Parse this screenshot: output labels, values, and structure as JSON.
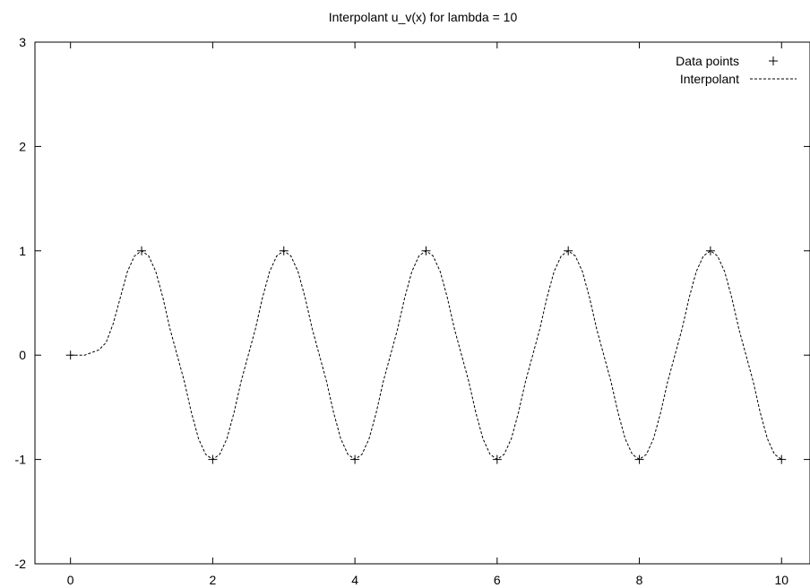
{
  "chart_data": {
    "type": "line",
    "title": "Interpolant u_v(x) for lambda = 10",
    "xlabel": "",
    "ylabel": "",
    "xlim": [
      -0.5,
      10.4
    ],
    "ylim": [
      -2,
      3
    ],
    "x_ticks": [
      "0",
      "2",
      "4",
      "6",
      "8",
      "10"
    ],
    "y_ticks": [
      "-2",
      "-1",
      "0",
      "1",
      "2",
      "3"
    ],
    "grid": false,
    "legend_position": "top-right",
    "series": [
      {
        "name": "Data points",
        "style": "points",
        "marker": "+",
        "x": [
          0,
          1,
          2,
          3,
          4,
          5,
          6,
          7,
          8,
          9,
          10
        ],
        "y": [
          0,
          1,
          -1,
          1,
          -1,
          1,
          -1,
          1,
          -1,
          1,
          -1
        ]
      },
      {
        "name": "Interpolant",
        "style": "dashed-line",
        "x": [
          0,
          0.2,
          0.4,
          0.5,
          0.6,
          0.7,
          0.8,
          0.9,
          1.0,
          1.1,
          1.2,
          1.3,
          1.4,
          1.5,
          1.6,
          1.7,
          1.8,
          1.9,
          2.0,
          2.1,
          2.2,
          2.3,
          2.4,
          2.5,
          2.6,
          2.7,
          2.8,
          2.9,
          3.0,
          3.1,
          3.2,
          3.3,
          3.4,
          3.5,
          3.6,
          3.7,
          3.8,
          3.9,
          4.0,
          4.1,
          4.2,
          4.3,
          4.4,
          4.5,
          4.6,
          4.7,
          4.8,
          4.9,
          5.0,
          5.1,
          5.2,
          5.3,
          5.4,
          5.5,
          5.6,
          5.7,
          5.8,
          5.9,
          6.0,
          6.1,
          6.2,
          6.3,
          6.4,
          6.5,
          6.6,
          6.7,
          6.8,
          6.9,
          7.0,
          7.1,
          7.2,
          7.3,
          7.4,
          7.5,
          7.6,
          7.7,
          7.8,
          7.9,
          8.0,
          8.1,
          8.2,
          8.3,
          8.4,
          8.5,
          8.6,
          8.7,
          8.8,
          8.9,
          9.0,
          9.1,
          9.2,
          9.3,
          9.4,
          9.5,
          9.6,
          9.7,
          9.8,
          9.9,
          10.0
        ],
        "y": [
          0,
          0.0,
          0.05,
          0.12,
          0.3,
          0.55,
          0.8,
          0.95,
          1.0,
          0.95,
          0.8,
          0.55,
          0.25,
          0.0,
          -0.25,
          -0.55,
          -0.8,
          -0.95,
          -1.0,
          -0.95,
          -0.8,
          -0.55,
          -0.25,
          0.0,
          0.25,
          0.55,
          0.8,
          0.95,
          1.0,
          0.95,
          0.8,
          0.55,
          0.25,
          0.0,
          -0.25,
          -0.55,
          -0.8,
          -0.95,
          -1.0,
          -0.95,
          -0.8,
          -0.55,
          -0.25,
          0.0,
          0.25,
          0.55,
          0.8,
          0.95,
          1.0,
          0.95,
          0.8,
          0.55,
          0.25,
          0.0,
          -0.25,
          -0.55,
          -0.8,
          -0.95,
          -1.0,
          -0.95,
          -0.8,
          -0.55,
          -0.25,
          0.0,
          0.25,
          0.55,
          0.8,
          0.95,
          1.0,
          0.95,
          0.8,
          0.55,
          0.25,
          0.0,
          -0.25,
          -0.55,
          -0.8,
          -0.95,
          -1.0,
          -0.95,
          -0.8,
          -0.55,
          -0.25,
          0.0,
          0.25,
          0.55,
          0.8,
          0.95,
          1.0,
          0.95,
          0.8,
          0.55,
          0.25,
          0.0,
          -0.25,
          -0.55,
          -0.8,
          -0.95,
          -1.0
        ]
      }
    ]
  }
}
